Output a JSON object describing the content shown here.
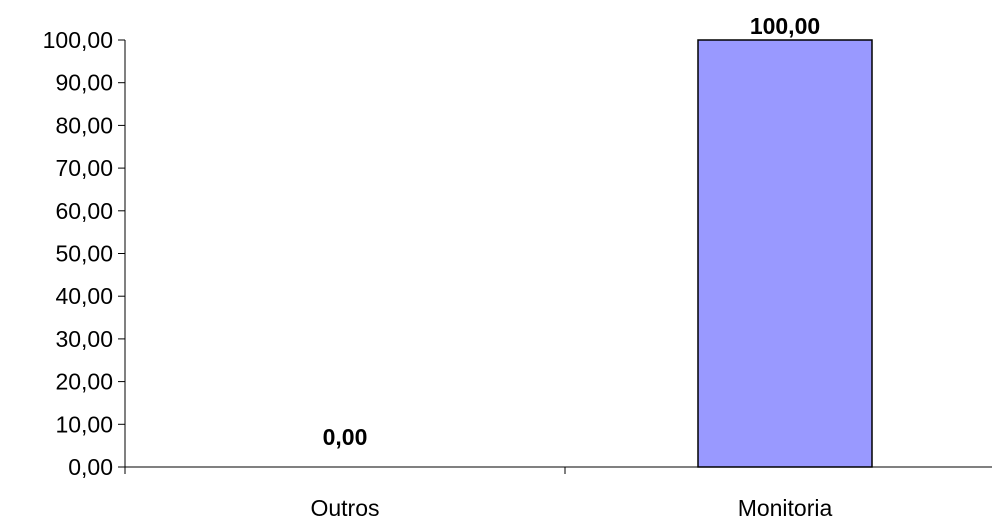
{
  "chart_data": {
    "type": "bar",
    "categories": [
      "Outros",
      "Monitoria"
    ],
    "values": [
      0,
      100
    ],
    "value_labels": [
      "0,00",
      "100,00"
    ],
    "title": "",
    "xlabel": "",
    "ylabel": "",
    "ylim": [
      0,
      100
    ],
    "yticks": [
      0,
      10,
      20,
      30,
      40,
      50,
      60,
      70,
      80,
      90,
      100
    ],
    "ytick_labels": [
      "0,00",
      "10,00",
      "20,00",
      "30,00",
      "40,00",
      "50,00",
      "60,00",
      "70,00",
      "80,00",
      "90,00",
      "100,00"
    ],
    "grid": false,
    "legend": "none",
    "bar_color": "#9999ff",
    "bar_edge_color": "#000000"
  }
}
